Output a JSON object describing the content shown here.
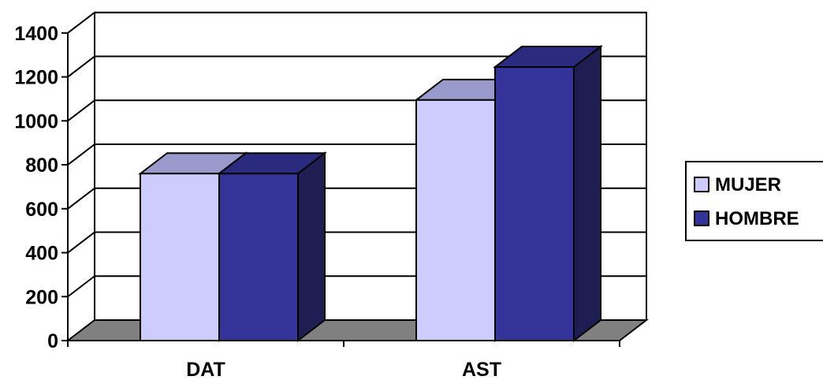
{
  "chart_data": {
    "type": "bar",
    "style": "3d-clustered-column",
    "categories": [
      "DAT",
      "AST"
    ],
    "series": [
      {
        "name": "MUJER",
        "values": [
          760,
          1095
        ],
        "color": "#ccccff"
      },
      {
        "name": "HOMBRE",
        "values": [
          760,
          1245
        ],
        "color": "#333399"
      }
    ],
    "ylim": [
      0,
      1400
    ],
    "ytick_step": 200,
    "yticks": [
      "0",
      "200",
      "400",
      "600",
      "800",
      "1000",
      "1200",
      "1400"
    ],
    "title": "",
    "xlabel": "",
    "ylabel": "",
    "grid": true,
    "legend_position": "right",
    "colors": {
      "floor": "#808080",
      "mujer_top": "#9999cc",
      "hombre_top": "#2a2a7f",
      "hombre_side": "#1e1e52",
      "outline": "#000000"
    }
  }
}
